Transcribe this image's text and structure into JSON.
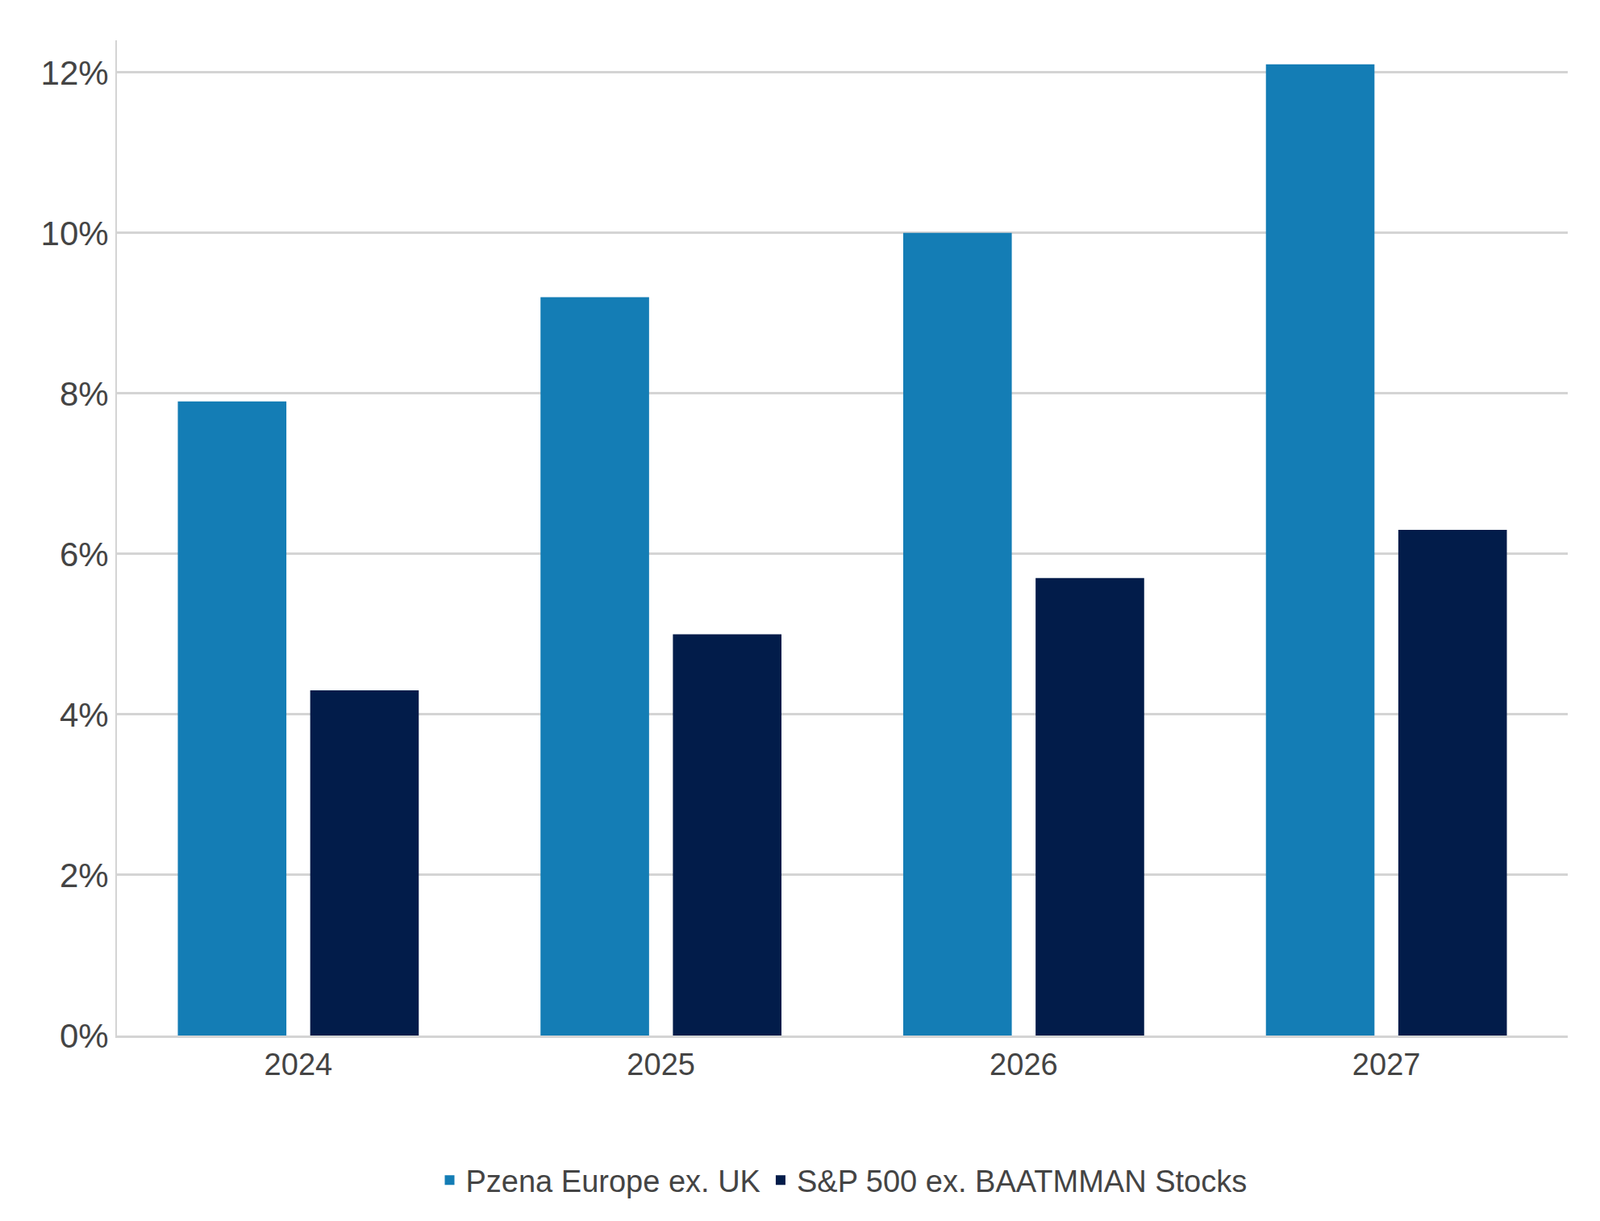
{
  "chart_data": {
    "type": "bar",
    "categories": [
      "2024",
      "2025",
      "2026",
      "2027"
    ],
    "series": [
      {
        "name": "Pzena Europe ex. UK",
        "color": "#147db5",
        "values": [
          7.9,
          9.2,
          10.0,
          12.1
        ]
      },
      {
        "name": "S&P 500 ex. BAATMMAN Stocks",
        "color": "#021c4a",
        "values": [
          4.3,
          5.0,
          5.7,
          6.3
        ]
      }
    ],
    "ylim": [
      0,
      12.4
    ],
    "yticks": [
      {
        "value": 0,
        "label": "0%"
      },
      {
        "value": 2,
        "label": "2%"
      },
      {
        "value": 4,
        "label": "4%"
      },
      {
        "value": 6,
        "label": "6%"
      },
      {
        "value": 8,
        "label": "8%"
      },
      {
        "value": 10,
        "label": "10%"
      },
      {
        "value": 12,
        "label": "12%"
      }
    ],
    "grid": true,
    "legend": "bottom"
  }
}
